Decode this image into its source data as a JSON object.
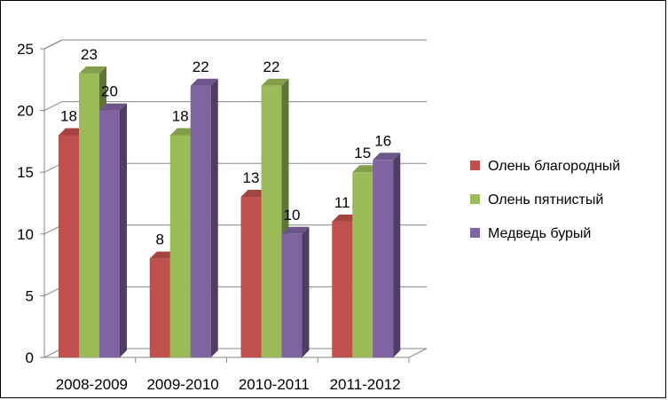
{
  "chart_data": {
    "type": "bar",
    "three_d": true,
    "categories": [
      "2008-2009",
      "2009-2010",
      "2010-2011",
      "2011-2012"
    ],
    "series": [
      {
        "name": "Олень благородный",
        "values": [
          18,
          8,
          13,
          11
        ],
        "color": "#C0504D"
      },
      {
        "name": "Олень пятнистый",
        "values": [
          23,
          18,
          22,
          15
        ],
        "color": "#9BBB59"
      },
      {
        "name": "Медведь бурый",
        "values": [
          20,
          22,
          10,
          16
        ],
        "color": "#8064A2"
      }
    ],
    "ylim": [
      0,
      25
    ],
    "yticks": [
      0,
      5,
      10,
      15,
      20,
      25
    ],
    "grid": true,
    "data_labels": true,
    "legend_position": "right"
  }
}
